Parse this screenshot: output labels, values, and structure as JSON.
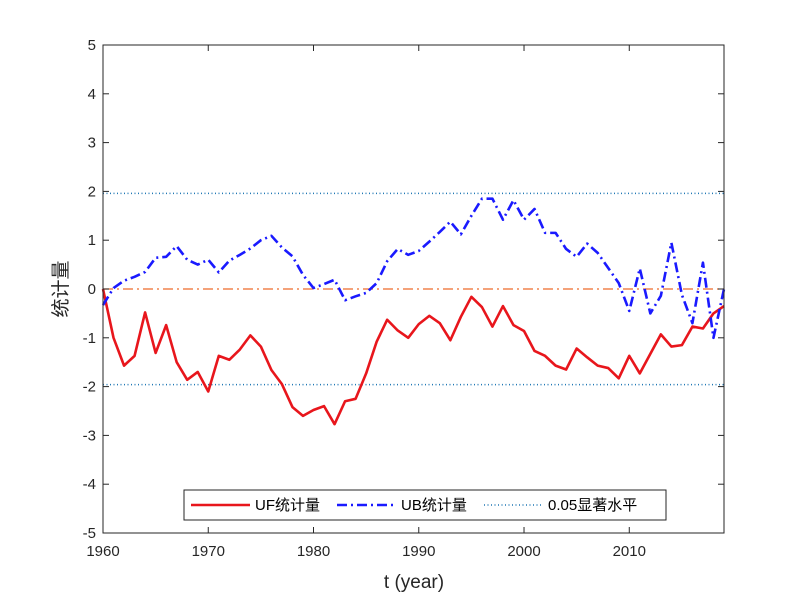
{
  "chart_data": {
    "type": "line",
    "xlabel": "t (year)",
    "ylabel": "统计量",
    "xlim": [
      1960,
      2019
    ],
    "ylim": [
      -5,
      5
    ],
    "xticks": [
      1960,
      1970,
      1980,
      1990,
      2000,
      2010
    ],
    "yticks": [
      -5,
      -4,
      -3,
      -2,
      -1,
      0,
      1,
      2,
      3,
      4,
      5
    ],
    "grid": false,
    "legend_position": "bottom-center",
    "x": [
      1960,
      1961,
      1962,
      1963,
      1964,
      1965,
      1966,
      1967,
      1968,
      1969,
      1970,
      1971,
      1972,
      1973,
      1974,
      1975,
      1976,
      1977,
      1978,
      1979,
      1980,
      1981,
      1982,
      1983,
      1984,
      1985,
      1986,
      1987,
      1988,
      1989,
      1990,
      1991,
      1992,
      1993,
      1994,
      1995,
      1996,
      1997,
      1998,
      1999,
      2000,
      2001,
      2002,
      2003,
      2004,
      2005,
      2006,
      2007,
      2008,
      2009,
      2010,
      2011,
      2012,
      2013,
      2014,
      2015,
      2016,
      2017,
      2018,
      2019
    ],
    "series": [
      {
        "name": "UF统计量",
        "color": "#e8161c",
        "style": "solid",
        "values": [
          0,
          -1.0,
          -1.57,
          -1.37,
          -0.48,
          -1.31,
          -0.74,
          -1.5,
          -1.86,
          -1.7,
          -2.1,
          -1.37,
          -1.45,
          -1.24,
          -0.95,
          -1.18,
          -1.66,
          -1.95,
          -2.42,
          -2.6,
          -2.48,
          -2.4,
          -2.77,
          -2.3,
          -2.25,
          -1.73,
          -1.08,
          -0.63,
          -0.85,
          -1.0,
          -0.72,
          -0.55,
          -0.7,
          -1.05,
          -0.57,
          -0.16,
          -0.37,
          -0.77,
          -0.35,
          -0.74,
          -0.86,
          -1.27,
          -1.37,
          -1.57,
          -1.65,
          -1.22,
          -1.4,
          -1.57,
          -1.62,
          -1.83,
          -1.37,
          -1.73,
          -1.33,
          -0.93,
          -1.18,
          -1.15,
          -0.77,
          -0.81,
          -0.5,
          -0.35
        ]
      },
      {
        "name": "UB统计量",
        "color": "#1a1aff",
        "style": "dashdot",
        "values": [
          -0.33,
          0.02,
          0.17,
          0.25,
          0.35,
          0.64,
          0.66,
          0.88,
          0.6,
          0.5,
          0.6,
          0.34,
          0.58,
          0.7,
          0.83,
          1.0,
          1.09,
          0.85,
          0.67,
          0.29,
          0.02,
          0.1,
          0.19,
          -0.23,
          -0.15,
          -0.08,
          0.12,
          0.57,
          0.82,
          0.7,
          0.78,
          0.97,
          1.17,
          1.38,
          1.12,
          1.5,
          1.85,
          1.85,
          1.42,
          1.82,
          1.42,
          1.64,
          1.15,
          1.15,
          0.82,
          0.66,
          0.93,
          0.74,
          0.43,
          0.12,
          -0.45,
          0.42,
          -0.5,
          -0.14,
          0.95,
          -0.12,
          -0.7,
          0.54,
          -1.0,
          0.0
        ]
      }
    ],
    "reference_lines": [
      {
        "name": "0.05显著水平",
        "color": "#1f77b4",
        "style": "dotted",
        "values": [
          1.96,
          -1.96
        ]
      },
      {
        "name": "",
        "color": "#ee6a2a",
        "style": "dashdot",
        "values": [
          0
        ]
      }
    ]
  }
}
